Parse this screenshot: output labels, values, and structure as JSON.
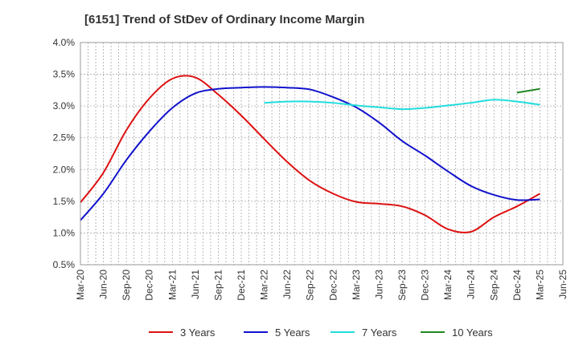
{
  "chart_data": {
    "type": "line",
    "title": "[6151]  Trend of StDev of Ordinary Income Margin",
    "xlabel": "",
    "ylabel": "",
    "x_ticks": [
      "Mar-20",
      "Jun-20",
      "Sep-20",
      "Dec-20",
      "Mar-21",
      "Jun-21",
      "Sep-21",
      "Dec-21",
      "Mar-22",
      "Jun-22",
      "Sep-22",
      "Dec-22",
      "Mar-23",
      "Jun-23",
      "Sep-23",
      "Dec-23",
      "Mar-24",
      "Jun-24",
      "Sep-24",
      "Dec-24",
      "Mar-25",
      "Jun-25"
    ],
    "y_ticks": [
      "0.5%",
      "1.0%",
      "1.5%",
      "2.0%",
      "2.5%",
      "3.0%",
      "3.5%",
      "4.0%"
    ],
    "ylim": [
      0.5,
      4.0
    ],
    "grid": true,
    "legend_position": "bottom",
    "series": [
      {
        "name": "3 Years",
        "color": "#dd1111",
        "x": [
          "Mar-20",
          "Jun-20",
          "Sep-20",
          "Dec-20",
          "Mar-21",
          "Jun-21",
          "Sep-21",
          "Dec-21",
          "Mar-22",
          "Jun-22",
          "Sep-22",
          "Dec-22",
          "Mar-23",
          "Jun-23",
          "Sep-23",
          "Dec-23",
          "Mar-24",
          "Jun-24",
          "Sep-24",
          "Dec-24",
          "Mar-25"
        ],
        "values": [
          1.48,
          1.95,
          2.62,
          3.12,
          3.43,
          3.45,
          3.18,
          2.85,
          2.48,
          2.12,
          1.82,
          1.62,
          1.49,
          1.46,
          1.42,
          1.28,
          1.06,
          1.02,
          1.25,
          1.42,
          1.62
        ]
      },
      {
        "name": "5 Years",
        "color": "#1111cc",
        "x": [
          "Mar-20",
          "Jun-20",
          "Sep-20",
          "Dec-20",
          "Mar-21",
          "Jun-21",
          "Sep-21",
          "Dec-21",
          "Mar-22",
          "Jun-22",
          "Sep-22",
          "Dec-22",
          "Mar-23",
          "Jun-23",
          "Sep-23",
          "Dec-23",
          "Mar-24",
          "Jun-24",
          "Sep-24",
          "Dec-24",
          "Mar-25"
        ],
        "values": [
          1.2,
          1.62,
          2.15,
          2.6,
          2.97,
          3.2,
          3.27,
          3.29,
          3.3,
          3.29,
          3.26,
          3.14,
          2.98,
          2.74,
          2.45,
          2.22,
          1.97,
          1.74,
          1.6,
          1.52,
          1.53
        ]
      },
      {
        "name": "7 Years",
        "color": "#22dddd",
        "x": [
          "Mar-22",
          "Jun-22",
          "Sep-22",
          "Dec-22",
          "Mar-23",
          "Jun-23",
          "Sep-23",
          "Dec-23",
          "Mar-24",
          "Jun-24",
          "Sep-24",
          "Dec-24",
          "Mar-25"
        ],
        "values": [
          3.05,
          3.07,
          3.07,
          3.05,
          3.01,
          2.98,
          2.95,
          2.97,
          3.01,
          3.05,
          3.1,
          3.07,
          3.02
        ]
      },
      {
        "name": "10 Years",
        "color": "#228822",
        "x": [
          "Dec-24",
          "Mar-25"
        ],
        "values": [
          3.21,
          3.27
        ]
      }
    ]
  }
}
